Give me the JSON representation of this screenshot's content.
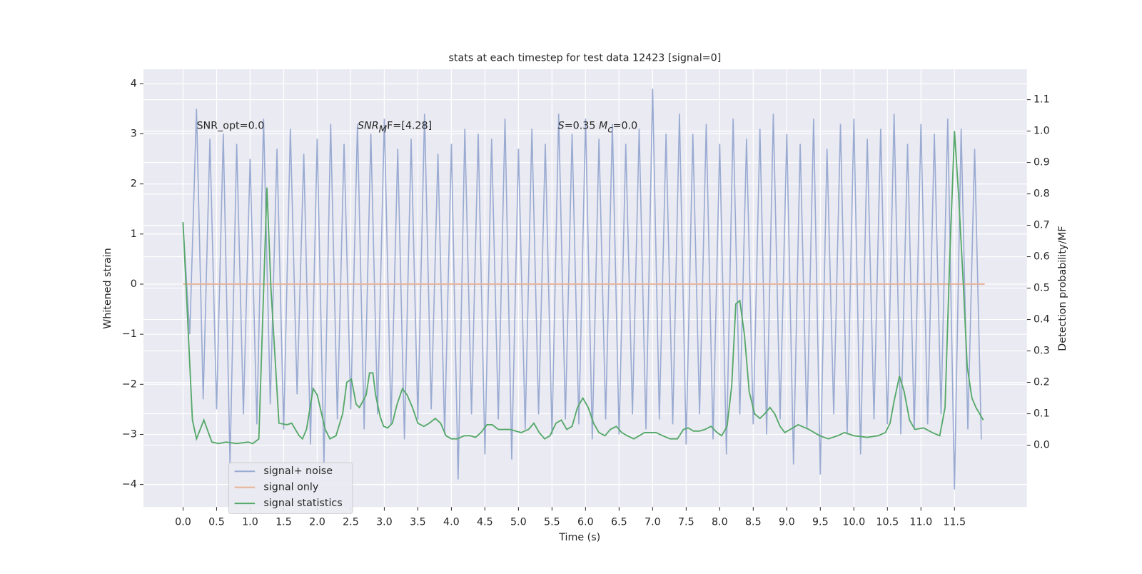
{
  "chart_data": {
    "type": "line",
    "title": "stats at each timestep for test data 12423 [signal=0]",
    "xlabel": "Time (s)",
    "ylabel": "Whitened strain",
    "y2label": "Detection probability/MF",
    "xlim": [
      -0.59,
      12.58
    ],
    "ylim": [
      -4.45,
      4.29
    ],
    "y2lim": [
      -0.197,
      1.197
    ],
    "xticks": [
      {
        "value": 0,
        "label": "0.0"
      },
      {
        "value": 0.5,
        "label": "0.5"
      },
      {
        "value": 1,
        "label": "1.0"
      },
      {
        "value": 1.5,
        "label": "1.5"
      },
      {
        "value": 2,
        "label": "2.0"
      },
      {
        "value": 2.5,
        "label": "2.5"
      },
      {
        "value": 3,
        "label": "3.0"
      },
      {
        "value": 3.5,
        "label": "3.5"
      },
      {
        "value": 4,
        "label": "4.0"
      },
      {
        "value": 4.5,
        "label": "4.5"
      },
      {
        "value": 5,
        "label": "5.0"
      },
      {
        "value": 5.5,
        "label": "5.5"
      },
      {
        "value": 6,
        "label": "6.0"
      },
      {
        "value": 6.5,
        "label": "6.5"
      },
      {
        "value": 7,
        "label": "7.0"
      },
      {
        "value": 7.5,
        "label": "7.5"
      },
      {
        "value": 8,
        "label": "8.0"
      },
      {
        "value": 8.5,
        "label": "8.5"
      },
      {
        "value": 9,
        "label": "9.0"
      },
      {
        "value": 9.5,
        "label": "9.5"
      },
      {
        "value": 10,
        "label": "10.0"
      },
      {
        "value": 10.5,
        "label": "10.5"
      },
      {
        "value": 11,
        "label": "11.0"
      },
      {
        "value": 11.5,
        "label": "11.5"
      }
    ],
    "yticks": [
      {
        "value": -4,
        "label": "−4"
      },
      {
        "value": -3,
        "label": "−3"
      },
      {
        "value": -2,
        "label": "−2"
      },
      {
        "value": -1,
        "label": "−1"
      },
      0,
      1,
      2,
      3,
      4
    ],
    "y2ticks": [
      {
        "value": 0,
        "label": "0.0"
      },
      {
        "value": 0.1,
        "label": "0.1"
      },
      {
        "value": 0.2,
        "label": "0.2"
      },
      {
        "value": 0.3,
        "label": "0.3"
      },
      {
        "value": 0.4,
        "label": "0.4"
      },
      {
        "value": 0.5,
        "label": "0.5"
      },
      {
        "value": 0.6,
        "label": "0.6"
      },
      {
        "value": 0.7,
        "label": "0.7"
      },
      {
        "value": 0.8,
        "label": "0.8"
      },
      {
        "value": 0.9,
        "label": "0.9"
      },
      {
        "value": 1,
        "label": "1.0"
      },
      {
        "value": 1.1,
        "label": "1.1"
      }
    ],
    "grid": true,
    "legend": "lower left",
    "annotations": [
      [
        "SNR_opt=0.0"
      ],
      [
        "SNR",
        "M",
        "F=[4.28]"
      ],
      [
        "S",
        "=0.35   ",
        "M",
        "c",
        "=0.0"
      ]
    ],
    "series": [
      {
        "name": "signal+ noise",
        "color": "#9aabd2",
        "x": [
          0,
          0.1,
          0.2,
          0.3,
          0.4,
          0.5,
          0.6,
          0.7,
          0.8,
          0.9,
          1,
          1.1,
          1.2,
          1.3,
          1.4,
          1.5,
          1.6,
          1.7,
          1.8,
          1.9,
          2,
          2.1,
          2.2,
          2.3,
          2.4,
          2.5,
          2.6,
          2.7,
          2.8,
          2.9,
          3,
          3.1,
          3.2,
          3.3,
          3.4,
          3.5,
          3.6,
          3.7,
          3.8,
          3.9,
          4,
          4.1,
          4.2,
          4.3,
          4.4,
          4.5,
          4.6,
          4.7,
          4.8,
          4.9,
          5,
          5.1,
          5.2,
          5.3,
          5.4,
          5.5,
          5.6,
          5.7,
          5.8,
          5.9,
          6,
          6.1,
          6.2,
          6.3,
          6.4,
          6.5,
          6.6,
          6.7,
          6.8,
          6.9,
          7,
          7.1,
          7.2,
          7.3,
          7.4,
          7.5,
          7.6,
          7.7,
          7.8,
          7.9,
          8,
          8.1,
          8.2,
          8.3,
          8.4,
          8.5,
          8.6,
          8.7,
          8.8,
          8.9,
          9,
          9.1,
          9.2,
          9.3,
          9.4,
          9.5,
          9.6,
          9.7,
          9.8,
          9.9,
          10,
          10.1,
          10.2,
          10.3,
          10.4,
          10.5,
          10.6,
          10.7,
          10.8,
          10.9,
          11,
          11.1,
          11.2,
          11.3,
          11.4,
          11.5,
          11.6,
          11.7,
          11.8,
          11.9
        ],
        "values": [
          1.2,
          -1.0,
          3.5,
          -2.3,
          2.9,
          -2.5,
          3.0,
          -3.6,
          2.8,
          -2.6,
          2.5,
          -2.8,
          3.3,
          -2.4,
          2.7,
          -2.9,
          3.1,
          -2.2,
          2.6,
          -3.2,
          2.9,
          -3.6,
          3.2,
          -2.7,
          2.8,
          -2.5,
          3.2,
          -2.9,
          3.0,
          -2.6,
          3.3,
          -2.8,
          2.7,
          -3.1,
          2.9,
          -2.7,
          3.4,
          -2.5,
          2.6,
          -3.0,
          2.8,
          -3.9,
          3.1,
          -2.6,
          3.0,
          -3.4,
          2.9,
          -2.7,
          3.3,
          -3.5,
          2.7,
          -2.9,
          3.1,
          -2.6,
          2.8,
          -3.0,
          3.4,
          -2.7,
          3.0,
          -2.8,
          3.3,
          -3.1,
          2.9,
          -2.7,
          3.2,
          -3.0,
          2.8,
          -2.6,
          3.1,
          -2.9,
          3.9,
          -2.7,
          3.0,
          -2.8,
          3.4,
          -3.2,
          3.0,
          -2.6,
          3.2,
          -3.1,
          2.8,
          -3.4,
          3.3,
          -2.6,
          2.9,
          -2.8,
          3.1,
          -3.0,
          3.4,
          -2.7,
          3.0,
          -3.6,
          2.8,
          -2.9,
          3.3,
          -3.8,
          2.7,
          -2.6,
          3.2,
          -3.0,
          3.3,
          -3.4,
          2.9,
          -2.7,
          3.1,
          -2.8,
          3.4,
          -3.0,
          2.8,
          -2.9,
          3.2,
          -2.8,
          3.0,
          -2.6,
          3.3,
          -4.1,
          3.1,
          -2.9,
          2.7,
          -3.1
        ]
      },
      {
        "name": "signal only",
        "color": "#e8b396",
        "x": [
          0,
          11.95
        ],
        "values": [
          0,
          0
        ]
      },
      {
        "name": "signal statistics",
        "color": "#55a868",
        "axis": "y2",
        "x": [
          0,
          0.14,
          0.2,
          0.31,
          0.43,
          0.53,
          0.64,
          0.8,
          0.97,
          1.04,
          1.13,
          1.25,
          1.31,
          1.43,
          1.55,
          1.62,
          1.73,
          1.78,
          1.84,
          1.94,
          2.0,
          2.12,
          2.19,
          2.28,
          2.38,
          2.44,
          2.51,
          2.58,
          2.63,
          2.73,
          2.78,
          2.83,
          2.87,
          2.94,
          2.99,
          3.05,
          3.12,
          3.19,
          3.27,
          3.34,
          3.42,
          3.5,
          3.59,
          3.67,
          3.76,
          3.84,
          3.92,
          4.0,
          4.09,
          4.19,
          4.28,
          4.36,
          4.44,
          4.53,
          4.61,
          4.7,
          4.87,
          5.04,
          5.15,
          5.23,
          5.31,
          5.39,
          5.47,
          5.56,
          5.64,
          5.72,
          5.8,
          5.88,
          5.96,
          6.04,
          6.12,
          6.2,
          6.29,
          6.37,
          6.46,
          6.54,
          6.62,
          6.72,
          6.88,
          7.05,
          7.15,
          7.26,
          7.37,
          7.46,
          7.53,
          7.61,
          7.7,
          7.78,
          7.87,
          7.96,
          8.03,
          8.11,
          8.18,
          8.24,
          8.3,
          8.37,
          8.44,
          8.52,
          8.6,
          8.67,
          8.75,
          8.82,
          8.9,
          8.97,
          9.05,
          9.17,
          9.33,
          9.49,
          9.62,
          9.76,
          9.86,
          10.0,
          10.2,
          10.36,
          10.47,
          10.54,
          10.6,
          10.68,
          10.75,
          10.83,
          10.91,
          11.04,
          11.17,
          11.28,
          11.36,
          11.43,
          11.5,
          11.56,
          11.63,
          11.69,
          11.76,
          11.82,
          11.93
        ],
        "values": [
          0.71,
          0.08,
          0.02,
          0.08,
          0.01,
          0.005,
          0.01,
          0.005,
          0.01,
          0.005,
          0.02,
          0.82,
          0.5,
          0.07,
          0.065,
          0.07,
          0.03,
          0.02,
          0.05,
          0.18,
          0.16,
          0.05,
          0.02,
          0.03,
          0.1,
          0.2,
          0.21,
          0.13,
          0.12,
          0.16,
          0.23,
          0.23,
          0.16,
          0.09,
          0.06,
          0.055,
          0.07,
          0.13,
          0.18,
          0.16,
          0.12,
          0.07,
          0.06,
          0.07,
          0.085,
          0.07,
          0.03,
          0.02,
          0.02,
          0.03,
          0.03,
          0.025,
          0.04,
          0.065,
          0.065,
          0.05,
          0.05,
          0.04,
          0.05,
          0.07,
          0.04,
          0.02,
          0.03,
          0.07,
          0.08,
          0.05,
          0.06,
          0.12,
          0.15,
          0.12,
          0.07,
          0.04,
          0.03,
          0.05,
          0.06,
          0.04,
          0.03,
          0.02,
          0.04,
          0.04,
          0.03,
          0.02,
          0.02,
          0.05,
          0.055,
          0.045,
          0.045,
          0.05,
          0.06,
          0.04,
          0.03,
          0.06,
          0.19,
          0.45,
          0.46,
          0.35,
          0.17,
          0.1,
          0.085,
          0.1,
          0.12,
          0.1,
          0.06,
          0.04,
          0.05,
          0.065,
          0.05,
          0.03,
          0.02,
          0.03,
          0.04,
          0.03,
          0.025,
          0.03,
          0.04,
          0.07,
          0.14,
          0.22,
          0.17,
          0.08,
          0.05,
          0.055,
          0.04,
          0.03,
          0.12,
          0.6,
          1.0,
          0.8,
          0.52,
          0.25,
          0.15,
          0.12,
          0.08
        ]
      }
    ]
  }
}
